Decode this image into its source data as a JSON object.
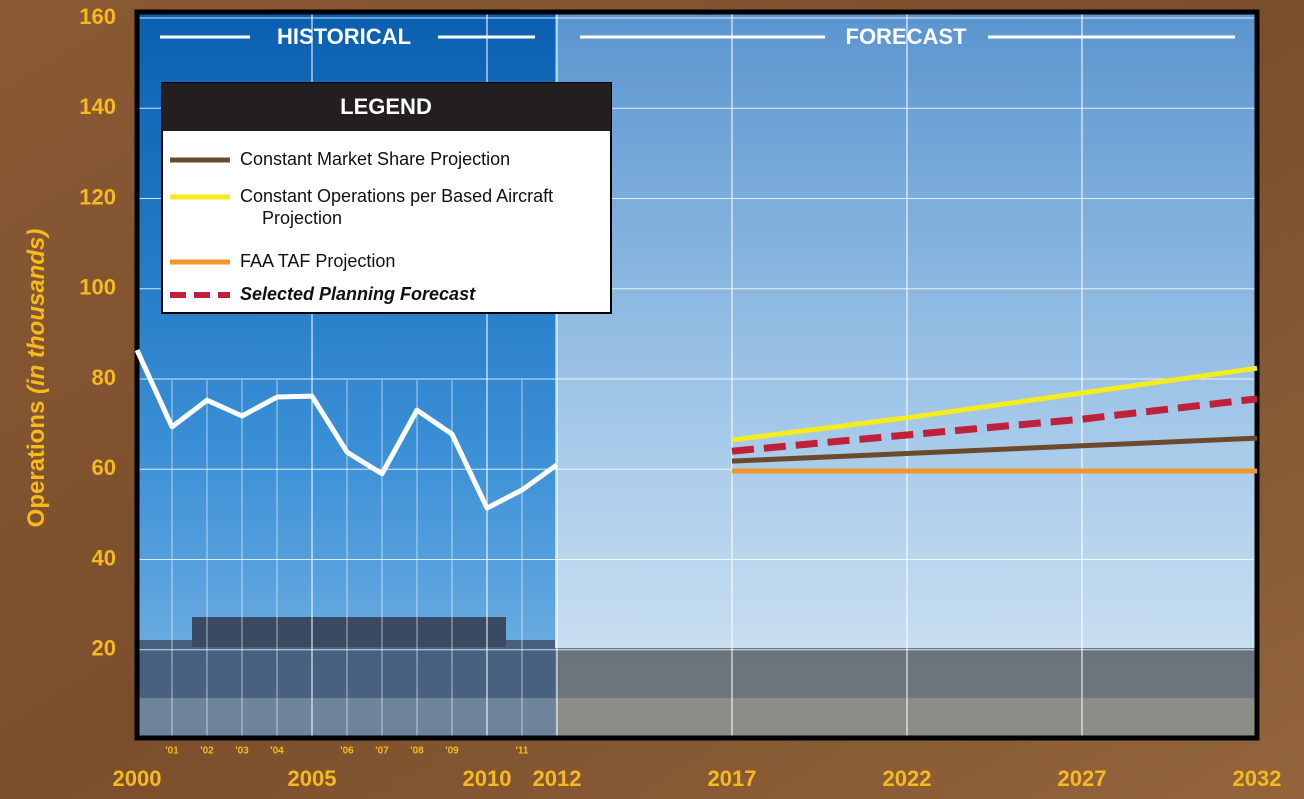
{
  "chart_data": {
    "type": "line",
    "y_label": [
      "Operations",
      "(in thousands)"
    ],
    "sections": [
      "HISTORICAL",
      "FORECAST"
    ],
    "legend_title": "LEGEND",
    "xlim": [
      2000,
      2032
    ],
    "ylim": [
      0,
      160
    ],
    "yticks": [
      20,
      40,
      60,
      80,
      100,
      120,
      140,
      160
    ],
    "xticks": [
      2000,
      2005,
      2010,
      2012,
      2017,
      2022,
      2027,
      2032
    ],
    "xticks_minor": [
      {
        "value": 2001,
        "label": "'01"
      },
      {
        "value": 2002,
        "label": "'02"
      },
      {
        "value": 2003,
        "label": "'03"
      },
      {
        "value": 2004,
        "label": "'04"
      },
      {
        "value": 2006,
        "label": "'06"
      },
      {
        "value": 2007,
        "label": "'07"
      },
      {
        "value": 2008,
        "label": "'08"
      },
      {
        "value": 2009,
        "label": "'09"
      },
      {
        "value": 2011,
        "label": "'11"
      }
    ],
    "grid": true,
    "series": [
      {
        "color": "#ffffff",
        "x": [
          2000,
          2001,
          2002,
          2003,
          2004,
          2005,
          2006,
          2007,
          2008,
          2009,
          2010,
          2011,
          2012
        ],
        "values": [
          86.4,
          69.4,
          75.3,
          71.8,
          76,
          76.2,
          63.8,
          59,
          73.1,
          67.8,
          51.4,
          55.4,
          61
        ]
      },
      {
        "name": "Constant Market Share Projection",
        "color": "#6b4a2e",
        "x": [
          2017,
          2022,
          2027,
          2032
        ],
        "values": [
          61.8,
          63.5,
          65.2,
          66.9
        ]
      },
      {
        "name": "Constant Operations per Based Aircraft Projection",
        "color": "#f5ec1b",
        "x": [
          2017,
          2022,
          2027,
          2032
        ],
        "values": [
          66.5,
          71.4,
          76.9,
          82.4
        ]
      },
      {
        "name": "FAA TAF Projection",
        "color": "#f0962a",
        "x": [
          2017,
          2022,
          2027,
          2032
        ],
        "values": [
          59.6,
          59.6,
          59.6,
          59.6
        ]
      },
      {
        "name": "Selected Planning Forecast",
        "color": "#c0203a",
        "style": "dashed",
        "x": [
          2017,
          2022,
          2027,
          2032
        ],
        "values": [
          64,
          67.6,
          71.1,
          75.6
        ]
      }
    ]
  }
}
